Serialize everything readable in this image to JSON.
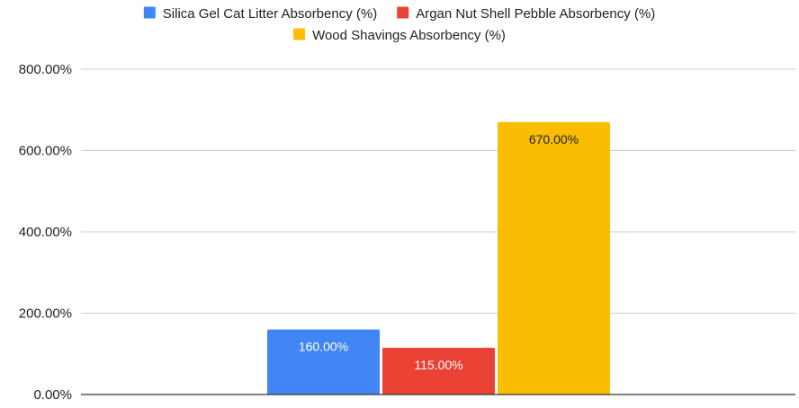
{
  "chart_data": {
    "type": "bar",
    "title": "",
    "xlabel": "",
    "ylabel": "",
    "categories": [
      ""
    ],
    "series": [
      {
        "name": "Silica Gel Cat Litter Absorbency (%)",
        "values": [
          160
        ],
        "color": "#4285f4",
        "label": "160.00%",
        "label_color": "#ffffff"
      },
      {
        "name": "Argan Nut Shell Pebble Absorbency (%)",
        "values": [
          115
        ],
        "color": "#ea4335",
        "label": "115.00%",
        "label_color": "#ffffff"
      },
      {
        "name": "Wood Shavings Absorbency (%)",
        "values": [
          670
        ],
        "color": "#fbbc04",
        "label": "670.00%",
        "label_color": "#222222"
      }
    ],
    "ylim": [
      0,
      800
    ],
    "yticks": [
      {
        "value": 0,
        "label": "0.00%"
      },
      {
        "value": 200,
        "label": "200.00%"
      },
      {
        "value": 400,
        "label": "400.00%"
      },
      {
        "value": 600,
        "label": "600.00%"
      },
      {
        "value": 800,
        "label": "800.00%"
      }
    ],
    "grid": true,
    "legend_position": "top"
  }
}
